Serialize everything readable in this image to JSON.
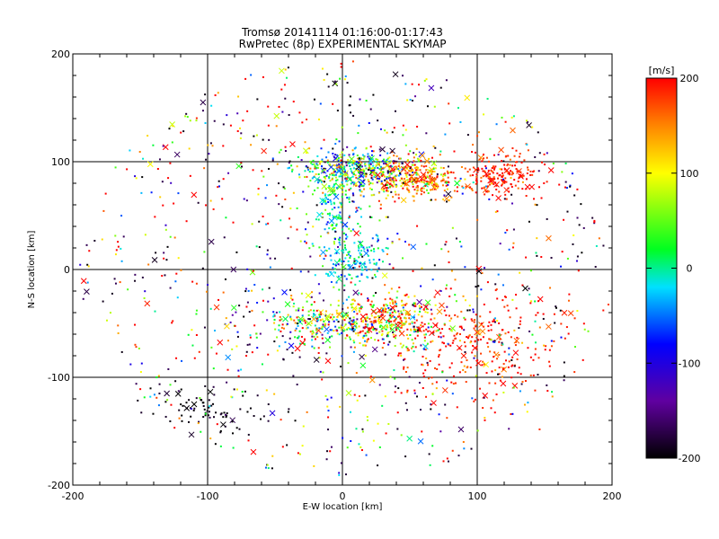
{
  "chart_data": {
    "type": "scatter",
    "title": "Tromsø 20141114 01:16:00-01:17:43",
    "subtitle": "RwPretec (8p) EXPERIMENTAL SKYMAP",
    "xlabel": "E-W location [km]",
    "ylabel": "N-S location [km]",
    "xlim": [
      -200,
      200
    ],
    "ylim": [
      -200,
      200
    ],
    "xticks": [
      "-200",
      "-100",
      "0",
      "100",
      "200"
    ],
    "yticks": [
      "-200",
      "-100",
      "0",
      "100",
      "200"
    ],
    "grid": true,
    "colorbar": {
      "label": "[m/s]",
      "range": [
        -200,
        200
      ],
      "ticks": [
        "-200",
        "-100",
        "0",
        "100",
        "200"
      ],
      "colormap": "black-purple-blue-cyan-green-yellow-red"
    },
    "marker_types": [
      "dot",
      "cross"
    ],
    "clusters": [
      {
        "center": [
          10,
          92
        ],
        "spread": [
          22,
          10
        ],
        "velocity_mean": 20,
        "velocity_sd": 90
      },
      {
        "center": [
          55,
          85
        ],
        "spread": [
          18,
          10
        ],
        "velocity_mean": 150,
        "velocity_sd": 50
      },
      {
        "center": [
          120,
          88
        ],
        "spread": [
          14,
          10
        ],
        "velocity_mean": 190,
        "velocity_sd": 20
      },
      {
        "center": [
          -5,
          60
        ],
        "spread": [
          10,
          25
        ],
        "velocity_mean": 0,
        "velocity_sd": 50
      },
      {
        "center": [
          10,
          10
        ],
        "spread": [
          12,
          12
        ],
        "velocity_mean": -20,
        "velocity_sd": 30
      },
      {
        "center": [
          0,
          -50
        ],
        "spread": [
          35,
          12
        ],
        "velocity_mean": 40,
        "velocity_sd": 110
      },
      {
        "center": [
          35,
          -45
        ],
        "spread": [
          15,
          10
        ],
        "velocity_mean": 130,
        "velocity_sd": 70
      },
      {
        "center": [
          100,
          -70
        ],
        "spread": [
          35,
          30
        ],
        "velocity_mean": 190,
        "velocity_sd": 30
      },
      {
        "center": [
          -100,
          -130
        ],
        "spread": [
          20,
          12
        ],
        "velocity_mean": -195,
        "velocity_sd": 10
      },
      {
        "center": [
          0,
          0
        ],
        "spread": [
          110,
          95
        ],
        "velocity_mean": 60,
        "velocity_sd": 170
      }
    ],
    "sample_points": [
      {
        "x": 12,
        "y": 95,
        "v": -180
      },
      {
        "x": 60,
        "y": 88,
        "v": 190
      },
      {
        "x": 122,
        "y": 92,
        "v": 195
      },
      {
        "x": 85,
        "y": 80,
        "v": 20
      },
      {
        "x": -8,
        "y": 45,
        "v": -40
      },
      {
        "x": 15,
        "y": 5,
        "v": -10
      },
      {
        "x": 30,
        "y": -45,
        "v": 180
      },
      {
        "x": -25,
        "y": -50,
        "v": 60
      },
      {
        "x": 90,
        "y": -80,
        "v": 190
      },
      {
        "x": -110,
        "y": -125,
        "v": -200
      }
    ]
  }
}
